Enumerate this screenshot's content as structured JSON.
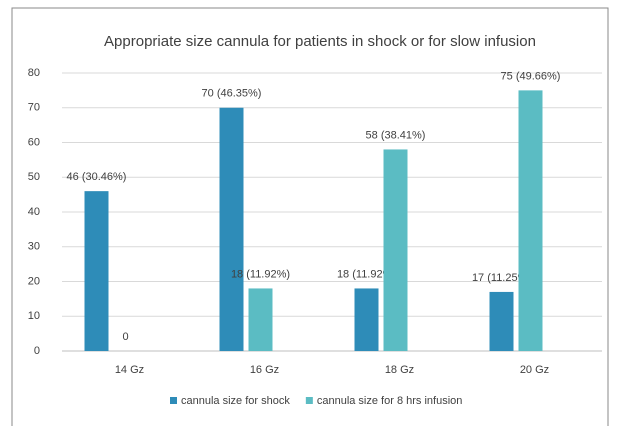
{
  "chart_data": {
    "type": "bar",
    "title": "Appropriate size cannula for patients in shock or for slow infusion",
    "categories": [
      "14 Gz",
      "16 Gz",
      "18 Gz",
      "20 Gz"
    ],
    "series": [
      {
        "name": "cannula size for shock",
        "color": "#2e8cb8",
        "values": [
          46,
          70,
          18,
          17
        ],
        "value_labels": [
          "46 (30.46%)",
          "70 (46.35%)",
          "18 (11.92%)",
          "17 (11.25%)"
        ]
      },
      {
        "name": "cannula size for 8 hrs infusion",
        "color": "#5bbcc3",
        "values": [
          0,
          18,
          58,
          75
        ],
        "value_labels": [
          "0",
          "18 (11.92%)",
          "58 (38.41%)",
          "75 (49.66%)"
        ]
      }
    ],
    "ylim": [
      0,
      80
    ],
    "yticks": [
      0,
      10,
      20,
      30,
      40,
      50,
      60,
      70,
      80
    ],
    "grid": true,
    "legend": "bottom"
  }
}
